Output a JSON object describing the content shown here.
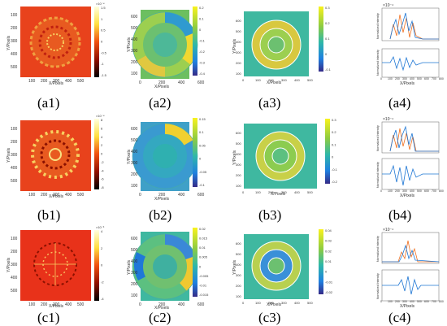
{
  "captions": [
    "(a1)",
    "(a2)",
    "(a3)",
    "(a4)",
    "(b1)",
    "(b2)",
    "(b3)",
    "(b4)",
    "(c1)",
    "(c2)",
    "(c3)",
    "(c4)"
  ],
  "axis": {
    "xlabel": "X/Pixels",
    "ylabel": "Y/Pixels"
  },
  "line_axis": {
    "xlabel": "X/Pixels",
    "top_ylabel": "Normalized Intensity",
    "bottom_ylabel": "Normalized Intensity",
    "x_ticks": [
      "0",
      "100",
      "200",
      "300",
      "400",
      "500",
      "600",
      "700",
      "800"
    ],
    "exp_top": "×10⁻⁴"
  },
  "tick_labels": {
    "img_x": [
      "100",
      "200",
      "300",
      "400",
      "500"
    ],
    "img_y": [
      "100",
      "200",
      "300",
      "400",
      "500"
    ],
    "seg_x": [
      "0",
      "200",
      "400",
      "600"
    ],
    "seg_y": [
      "100",
      "200",
      "300",
      "400",
      "500",
      "600"
    ],
    "seg3_x": [
      "0",
      "100",
      "200",
      "300",
      "400",
      "500"
    ]
  },
  "colorbars": {
    "a1": {
      "exp": "×10⁻⁴",
      "ticks": [
        "1.5",
        "1",
        "0.5",
        "0",
        "-0.5",
        "-1",
        "-1.5"
      ]
    },
    "a2": {
      "ticks": [
        "0.2",
        "0.1",
        "0",
        "-0.1",
        "-0.2",
        "-0.3",
        "-0.4"
      ]
    },
    "a3": {
      "ticks": [
        "0.3",
        "0.2",
        "0.1",
        "0",
        "-0.1"
      ]
    },
    "b1": {
      "exp": "×10⁻⁴",
      "ticks": [
        "8",
        "6",
        "4",
        "2",
        "0",
        "-2",
        "-4",
        "-6",
        "-8"
      ]
    },
    "b2": {
      "ticks": [
        "0.15",
        "0.1",
        "0.05",
        "0",
        "-0.05",
        "-0.1"
      ]
    },
    "b3": {
      "ticks": [
        "0.3",
        "0.2",
        "0.1",
        "0",
        "-0.1",
        "-0.2"
      ]
    },
    "c1": {
      "exp": "×10⁻³",
      "ticks": [
        "4",
        "2",
        "0",
        "-2",
        "-4"
      ]
    },
    "c2": {
      "ticks": [
        "0.02",
        "0.015",
        "0.01",
        "0.005",
        "0",
        "-0.005",
        "-0.01",
        "-0.015"
      ]
    },
    "c3": {
      "ticks": [
        "0.04",
        "0.03",
        "0.02",
        "0.01",
        "0",
        "-0.01",
        "-0.02"
      ]
    }
  },
  "colors": {
    "hot_bg": "#e8421c",
    "parula_bg": "#3fb8a0",
    "series_blue": "#1f77d4",
    "series_orange": "#f07020"
  }
}
